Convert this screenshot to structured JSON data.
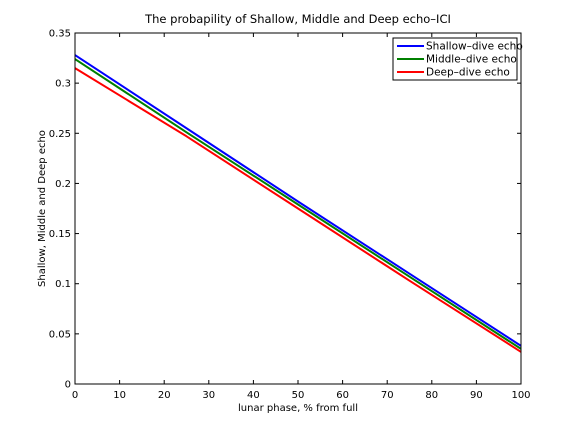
{
  "chart_data": {
    "type": "line",
    "title": "The probapility of Shallow, Middle and Deep echo–ICI",
    "xlabel": "lunar phase, % from full",
    "ylabel": "Shallow, Middle and Deep echo",
    "xlim": [
      0,
      100
    ],
    "ylim": [
      0,
      0.35
    ],
    "xticks": [
      0,
      10,
      20,
      30,
      40,
      50,
      60,
      70,
      80,
      90,
      100
    ],
    "xtick_labels": [
      "0",
      "10",
      "20",
      "30",
      "40",
      "50",
      "60",
      "70",
      "80",
      "90",
      "100"
    ],
    "yticks": [
      0,
      0.05,
      0.1,
      0.15,
      0.2,
      0.25,
      0.3,
      0.35
    ],
    "ytick_labels": [
      "0",
      "0.05",
      "0.1",
      "0.15",
      "0.2",
      "0.25",
      "0.3",
      "0.35"
    ],
    "grid": false,
    "legend": "top-right",
    "series": [
      {
        "name": "Shallow–dive echo",
        "color": "#0000ff",
        "x": [
          0,
          25,
          50,
          75,
          100
        ],
        "y": [
          0.328,
          0.255,
          0.182,
          0.11,
          0.038
        ]
      },
      {
        "name": "Middle–dive echo",
        "color": "#008000",
        "x": [
          0,
          25,
          50,
          75,
          100
        ],
        "y": [
          0.324,
          0.251,
          0.179,
          0.107,
          0.035
        ]
      },
      {
        "name": "Deep–dive echo",
        "color": "#ff0000",
        "x": [
          0,
          25,
          50,
          75,
          100
        ],
        "y": [
          0.315,
          0.247,
          0.175,
          0.103,
          0.032
        ]
      }
    ]
  }
}
